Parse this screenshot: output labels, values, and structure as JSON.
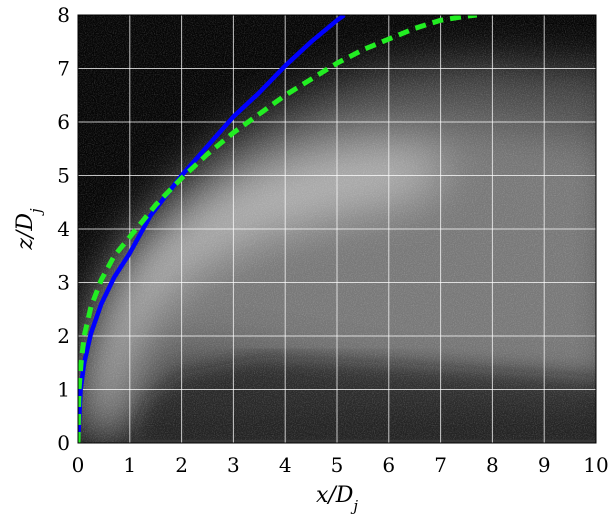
{
  "chart_data": {
    "type": "line",
    "background": "grayscale-scalar-concentration-field",
    "xlabel": "x/D",
    "xlabel_sub": "j",
    "ylabel": "z/D",
    "ylabel_sub": "j",
    "xlim": [
      0,
      10
    ],
    "ylim": [
      0,
      8
    ],
    "x_ticks": [
      "0",
      "1",
      "2",
      "3",
      "4",
      "5",
      "6",
      "7",
      "8",
      "9",
      "10"
    ],
    "y_ticks": [
      "0",
      "1",
      "2",
      "3",
      "4",
      "5",
      "6",
      "7",
      "8"
    ],
    "grid": true,
    "grid_color": "#ffffff",
    "series": [
      {
        "style": "solid",
        "color": "#0000ff",
        "x": [
          0,
          0.05,
          0.12,
          0.25,
          0.45,
          0.7,
          1.0,
          1.4,
          2.0,
          2.5,
          3.0,
          3.5,
          4.0,
          4.5,
          5.0,
          5.14
        ],
        "y": [
          0,
          1.0,
          1.5,
          2.05,
          2.6,
          3.1,
          3.55,
          4.25,
          5.0,
          5.55,
          6.1,
          6.55,
          7.05,
          7.5,
          7.9,
          8.0
        ]
      },
      {
        "style": "dashed",
        "color": "#22ee22",
        "x": [
          0,
          0.02,
          0.06,
          0.12,
          0.25,
          0.45,
          0.7,
          1.0,
          1.5,
          2.0,
          2.5,
          3.0,
          3.5,
          4.0,
          4.5,
          5.0,
          5.5,
          6.0,
          6.5,
          7.0,
          7.5,
          7.7
        ],
        "y": [
          0,
          1.0,
          1.5,
          2.0,
          2.55,
          3.05,
          3.5,
          3.85,
          4.45,
          4.95,
          5.4,
          5.8,
          6.15,
          6.5,
          6.8,
          7.1,
          7.35,
          7.55,
          7.75,
          7.9,
          7.98,
          8.0
        ]
      }
    ]
  }
}
